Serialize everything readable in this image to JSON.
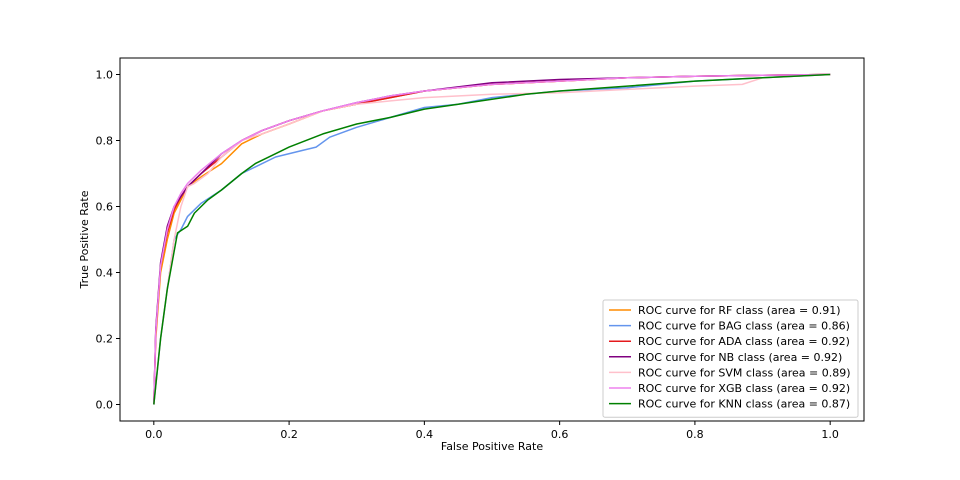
{
  "chart_data": {
    "type": "line",
    "title": "",
    "xlabel": "False Positive Rate",
    "ylabel": "True Positive Rate",
    "xlim": [
      -0.05,
      1.05
    ],
    "ylim": [
      -0.05,
      1.05
    ],
    "xticks": [
      "0.0",
      "0.2",
      "0.4",
      "0.6",
      "0.8",
      "1.0"
    ],
    "yticks": [
      "0.0",
      "0.2",
      "0.4",
      "0.6",
      "0.8",
      "1.0"
    ],
    "legend_position": "lower-right",
    "series": [
      {
        "name": "ROC curve for RF class (area = 0.91)",
        "color": "#ff8c00",
        "x": [
          0,
          0.003,
          0.01,
          0.02,
          0.03,
          0.04,
          0.05,
          0.07,
          0.1,
          0.13,
          0.16,
          0.2,
          0.25,
          0.3,
          0.35,
          0.4,
          0.5,
          0.6,
          0.7,
          0.8,
          0.9,
          1.0
        ],
        "y": [
          0,
          0.2,
          0.4,
          0.5,
          0.58,
          0.62,
          0.66,
          0.69,
          0.73,
          0.79,
          0.82,
          0.85,
          0.89,
          0.91,
          0.93,
          0.95,
          0.97,
          0.98,
          0.99,
          0.995,
          0.998,
          1.0
        ]
      },
      {
        "name": "ROC curve for BAG class (area = 0.86)",
        "color": "#6495ed",
        "x": [
          0,
          0.01,
          0.02,
          0.03,
          0.04,
          0.05,
          0.07,
          0.1,
          0.13,
          0.15,
          0.18,
          0.22,
          0.24,
          0.26,
          0.3,
          0.35,
          0.4,
          0.45,
          0.5,
          0.6,
          0.7,
          0.8,
          0.9,
          1.0
        ],
        "y": [
          0,
          0.2,
          0.35,
          0.5,
          0.53,
          0.57,
          0.61,
          0.65,
          0.7,
          0.72,
          0.75,
          0.77,
          0.78,
          0.81,
          0.84,
          0.87,
          0.9,
          0.91,
          0.93,
          0.95,
          0.96,
          0.98,
          0.99,
          1.0
        ]
      },
      {
        "name": "ROC curve for ADA class (area = 0.92)",
        "color": "#e41a1c",
        "x": [
          0,
          0.003,
          0.01,
          0.02,
          0.03,
          0.04,
          0.05,
          0.07,
          0.1,
          0.13,
          0.16,
          0.2,
          0.25,
          0.3,
          0.35,
          0.4,
          0.5,
          0.6,
          0.7,
          0.8,
          0.9,
          1.0
        ],
        "y": [
          0,
          0.22,
          0.42,
          0.52,
          0.59,
          0.63,
          0.66,
          0.7,
          0.75,
          0.8,
          0.83,
          0.86,
          0.89,
          0.91,
          0.93,
          0.95,
          0.97,
          0.98,
          0.99,
          0.995,
          0.998,
          1.0
        ]
      },
      {
        "name": "ROC curve for NB class (area = 0.92)",
        "color": "#800080",
        "x": [
          0,
          0.003,
          0.01,
          0.02,
          0.03,
          0.04,
          0.05,
          0.07,
          0.1,
          0.13,
          0.16,
          0.2,
          0.25,
          0.3,
          0.35,
          0.4,
          0.5,
          0.6,
          0.7,
          0.8,
          0.9,
          1.0
        ],
        "y": [
          0,
          0.23,
          0.43,
          0.54,
          0.6,
          0.63,
          0.66,
          0.7,
          0.76,
          0.8,
          0.83,
          0.86,
          0.89,
          0.915,
          0.935,
          0.95,
          0.975,
          0.985,
          0.99,
          0.995,
          0.998,
          1.0
        ]
      },
      {
        "name": "ROC curve for SVM class (area = 0.89)",
        "color": "#ffc0cb",
        "x": [
          0,
          0.01,
          0.02,
          0.03,
          0.04,
          0.05,
          0.06,
          0.08,
          0.1,
          0.13,
          0.16,
          0.2,
          0.25,
          0.3,
          0.35,
          0.4,
          0.5,
          0.6,
          0.7,
          0.8,
          0.87,
          0.9,
          1.0
        ],
        "y": [
          0,
          0.2,
          0.35,
          0.5,
          0.6,
          0.66,
          0.67,
          0.7,
          0.75,
          0.8,
          0.82,
          0.85,
          0.89,
          0.91,
          0.92,
          0.93,
          0.94,
          0.945,
          0.955,
          0.965,
          0.97,
          0.99,
          1.0
        ]
      },
      {
        "name": "ROC curve for XGB class (area = 0.92)",
        "color": "#ee82ee",
        "x": [
          0,
          0.003,
          0.01,
          0.02,
          0.03,
          0.04,
          0.05,
          0.07,
          0.1,
          0.13,
          0.16,
          0.2,
          0.25,
          0.3,
          0.35,
          0.4,
          0.5,
          0.6,
          0.7,
          0.8,
          0.9,
          1.0
        ],
        "y": [
          0,
          0.22,
          0.42,
          0.53,
          0.6,
          0.64,
          0.67,
          0.71,
          0.76,
          0.8,
          0.83,
          0.86,
          0.89,
          0.915,
          0.935,
          0.95,
          0.97,
          0.98,
          0.99,
          0.995,
          0.998,
          1.0
        ]
      },
      {
        "name": "ROC curve for KNN class (area = 0.87)",
        "color": "#008000",
        "x": [
          0,
          0.01,
          0.02,
          0.035,
          0.05,
          0.06,
          0.08,
          0.1,
          0.13,
          0.15,
          0.18,
          0.2,
          0.25,
          0.3,
          0.35,
          0.4,
          0.45,
          0.5,
          0.55,
          0.6,
          0.7,
          0.8,
          0.9,
          1.0
        ],
        "y": [
          0,
          0.2,
          0.35,
          0.52,
          0.54,
          0.58,
          0.62,
          0.65,
          0.7,
          0.73,
          0.76,
          0.78,
          0.82,
          0.85,
          0.87,
          0.895,
          0.91,
          0.925,
          0.94,
          0.95,
          0.965,
          0.98,
          0.99,
          1.0
        ]
      }
    ]
  }
}
